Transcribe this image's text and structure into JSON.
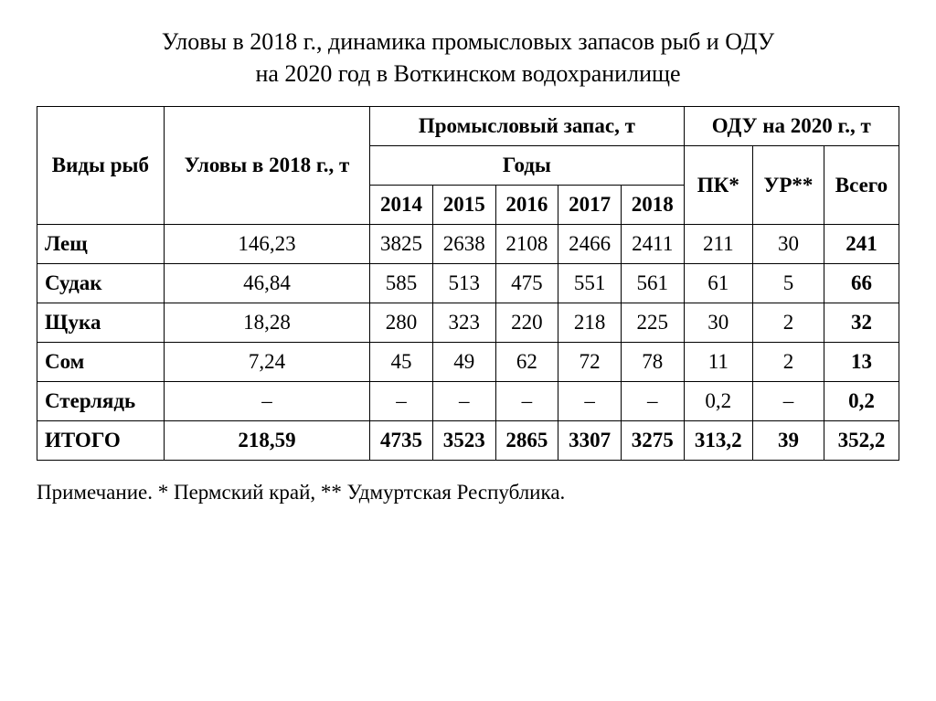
{
  "title_line1": "Уловы в 2018 г., динамика промысловых запасов рыб и ОДУ",
  "title_line2": "на 2020 год в Воткинском водохранилище",
  "headers": {
    "species": "Виды рыб",
    "catch": "Уловы в 2018 г., т",
    "stock_group": "Промысловый запас, т",
    "years_label": "Годы",
    "odu_group": "ОДУ на 2020 г., т",
    "y2014": "2014",
    "y2015": "2015",
    "y2016": "2016",
    "y2017": "2017",
    "y2018": "2018",
    "pk": "ПК*",
    "ur": "УР**",
    "total": "Всего"
  },
  "rows": [
    {
      "name": "Лещ",
      "catch": "146,23",
      "y2014": "3825",
      "y2015": "2638",
      "y2016": "2108",
      "y2017": "2466",
      "y2018": "2411",
      "pk": "211",
      "ur": "30",
      "total": "241"
    },
    {
      "name": "Судак",
      "catch": "46,84",
      "y2014": "585",
      "y2015": "513",
      "y2016": "475",
      "y2017": "551",
      "y2018": "561",
      "pk": "61",
      "ur": "5",
      "total": "66"
    },
    {
      "name": "Щука",
      "catch": "18,28",
      "y2014": "280",
      "y2015": "323",
      "y2016": "220",
      "y2017": "218",
      "y2018": "225",
      "pk": "30",
      "ur": "2",
      "total": "32"
    },
    {
      "name": "Сом",
      "catch": "7,24",
      "y2014": "45",
      "y2015": "49",
      "y2016": "62",
      "y2017": "72",
      "y2018": "78",
      "pk": "11",
      "ur": "2",
      "total": "13"
    },
    {
      "name": "Стерлядь",
      "catch": "–",
      "y2014": "–",
      "y2015": "–",
      "y2016": "–",
      "y2017": "–",
      "y2018": "–",
      "pk": "0,2",
      "ur": "–",
      "total": "0,2"
    }
  ],
  "total_row": {
    "name": "ИТОГО",
    "catch": "218,59",
    "y2014": "4735",
    "y2015": "3523",
    "y2016": "2865",
    "y2017": "3307",
    "y2018": "3275",
    "pk": "313,2",
    "ur": "39",
    "total": "352,2"
  },
  "note": "Примечание. * Пермский край, ** Удмуртская Республика.",
  "styling": {
    "type": "table",
    "background_color": "#ffffff",
    "border_color": "#000000",
    "text_color": "#000000",
    "font_family": "Times New Roman",
    "title_fontsize": 26,
    "cell_fontsize": 23,
    "note_fontsize": 23,
    "columns": [
      "Виды рыб",
      "Уловы в 2018 г., т",
      "2014",
      "2015",
      "2016",
      "2017",
      "2018",
      "ПК*",
      "УР**",
      "Всего"
    ],
    "bold_columns": [
      "Всего"
    ],
    "bold_rows": [
      "ИТОГО"
    ]
  }
}
